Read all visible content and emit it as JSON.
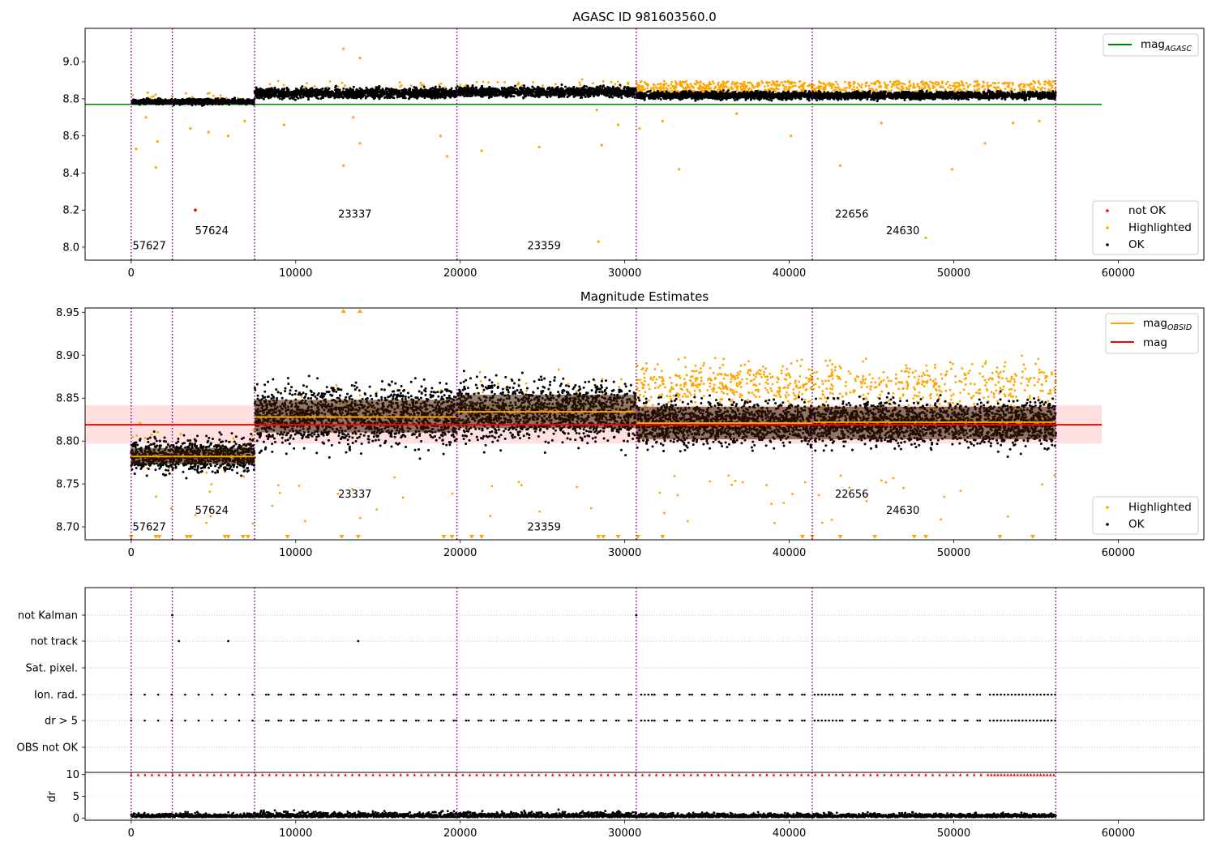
{
  "chart_data": [
    {
      "type": "scatter",
      "title": "AGASC ID 981603560.0",
      "xlim": [
        -2800,
        65200
      ],
      "ylim": [
        7.93,
        9.18
      ],
      "xticks": [
        0,
        10000,
        20000,
        30000,
        40000,
        50000,
        60000
      ],
      "yticks": [
        8.0,
        8.2,
        8.4,
        8.6,
        8.8,
        9.0
      ],
      "ytick_labels": [
        "8.0",
        "8.2",
        "8.4",
        "8.6",
        "8.8",
        "9.0"
      ],
      "obs_boundaries": [
        0,
        2500,
        7500,
        19800,
        30700,
        41400,
        56200
      ],
      "obsid_labels": [
        {
          "text": "57627",
          "x": 1100,
          "y": 7.99
        },
        {
          "text": "57624",
          "x": 4900,
          "y": 8.07
        },
        {
          "text": "23337",
          "x": 13600,
          "y": 8.16
        },
        {
          "text": "23359",
          "x": 25100,
          "y": 7.99
        },
        {
          "text": "22656",
          "x": 43800,
          "y": 8.16
        },
        {
          "text": "24630",
          "x": 46900,
          "y": 8.07
        }
      ],
      "segments": [
        {
          "x0": 0,
          "x1": 2500,
          "ok_center": 8.785,
          "ok_spread": 0.012,
          "highlight_center": 8.8,
          "highlight_count": 12
        },
        {
          "x0": 2500,
          "x1": 7500,
          "ok_center": 8.785,
          "ok_spread": 0.012,
          "highlight_center": 8.8,
          "highlight_count": 14
        },
        {
          "x0": 7500,
          "x1": 19800,
          "ok_center": 8.83,
          "ok_spread": 0.022,
          "highlight_center": 8.86,
          "highlight_count": 30
        },
        {
          "x0": 19800,
          "x1": 30700,
          "ok_center": 8.838,
          "ok_spread": 0.022,
          "highlight_center": 8.87,
          "highlight_count": 40
        },
        {
          "x0": 30700,
          "x1": 41400,
          "ok_center": 8.818,
          "ok_spread": 0.016,
          "highlight_center": 8.86,
          "highlight_count": 380
        },
        {
          "x0": 41400,
          "x1": 56200,
          "ok_center": 8.818,
          "ok_spread": 0.016,
          "highlight_center": 8.86,
          "highlight_count": 380
        }
      ],
      "outliers_highlighted": [
        {
          "x": 12900,
          "y": 9.07
        },
        {
          "x": 13900,
          "y": 9.02
        },
        {
          "x": 12900,
          "y": 8.44
        },
        {
          "x": 13500,
          "y": 8.7
        },
        {
          "x": 13900,
          "y": 8.56
        },
        {
          "x": 1500,
          "y": 8.43
        },
        {
          "x": 1600,
          "y": 8.57
        },
        {
          "x": 900,
          "y": 8.7
        },
        {
          "x": 300,
          "y": 8.53
        },
        {
          "x": 5900,
          "y": 8.6
        },
        {
          "x": 4700,
          "y": 8.62
        },
        {
          "x": 19200,
          "y": 8.49
        },
        {
          "x": 18800,
          "y": 8.6
        },
        {
          "x": 21300,
          "y": 8.52
        },
        {
          "x": 24800,
          "y": 8.54
        },
        {
          "x": 28400,
          "y": 8.03
        },
        {
          "x": 28600,
          "y": 8.55
        },
        {
          "x": 29600,
          "y": 8.66
        },
        {
          "x": 28300,
          "y": 8.74
        },
        {
          "x": 33300,
          "y": 8.42
        },
        {
          "x": 40100,
          "y": 8.6
        },
        {
          "x": 43100,
          "y": 8.44
        },
        {
          "x": 45600,
          "y": 8.67
        },
        {
          "x": 48300,
          "y": 8.05
        },
        {
          "x": 49900,
          "y": 8.42
        },
        {
          "x": 51900,
          "y": 8.56
        },
        {
          "x": 53600,
          "y": 8.67
        },
        {
          "x": 55200,
          "y": 8.68
        },
        {
          "x": 30900,
          "y": 8.64
        },
        {
          "x": 32300,
          "y": 8.68
        },
        {
          "x": 36800,
          "y": 8.72
        },
        {
          "x": 9300,
          "y": 8.66
        },
        {
          "x": 3600,
          "y": 8.64
        },
        {
          "x": 6900,
          "y": 8.68
        }
      ],
      "outliers_not_ok": [
        {
          "x": 3900,
          "y": 8.2
        }
      ],
      "mag_agasc": 8.77,
      "mag_agasc_xrange": [
        -2800,
        59000
      ],
      "legend_top": {
        "placement": "upper right",
        "entries": [
          {
            "label": "mag",
            "subscript": "AGASC",
            "color": "#008000"
          }
        ]
      },
      "legend_bottom": {
        "placement": "lower right",
        "entries": [
          {
            "label": "not OK",
            "color": "#ff0000"
          },
          {
            "label": "Highlighted",
            "color": "#ffa500"
          },
          {
            "label": "OK",
            "color": "#000000"
          }
        ]
      },
      "colors": {
        "ok": "#000000",
        "highlighted": "#ffa500",
        "not_ok": "#ff0000",
        "mag_agasc": "#008000",
        "obs_line": "#800080"
      }
    },
    {
      "type": "scatter",
      "title": "Magnitude Estimates",
      "xlim": [
        -2800,
        65200
      ],
      "ylim": [
        8.685,
        8.955
      ],
      "xticks": [
        0,
        10000,
        20000,
        30000,
        40000,
        50000,
        60000
      ],
      "yticks": [
        8.7,
        8.75,
        8.8,
        8.85,
        8.9,
        8.95
      ],
      "ytick_labels": [
        "8.70",
        "8.75",
        "8.80",
        "8.85",
        "8.90",
        "8.95"
      ],
      "obs_boundaries": [
        0,
        2500,
        7500,
        19800,
        30700,
        41400,
        56200
      ],
      "obsid_labels": [
        {
          "text": "57627",
          "x": 1100,
          "y": 8.696
        },
        {
          "text": "57624",
          "x": 4900,
          "y": 8.715
        },
        {
          "text": "23337",
          "x": 13600,
          "y": 8.734
        },
        {
          "text": "23359",
          "x": 25100,
          "y": 8.696
        },
        {
          "text": "22656",
          "x": 43800,
          "y": 8.734
        },
        {
          "text": "24630",
          "x": 46900,
          "y": 8.715
        }
      ],
      "segments": [
        {
          "x0": 0,
          "x1": 2500,
          "ok_center": 8.783,
          "ok_spread": 0.009,
          "mag_obsid": 8.782,
          "band": [
            8.773,
            8.792
          ],
          "highlight_center": 8.79,
          "highlight_count": 20
        },
        {
          "x0": 2500,
          "x1": 7500,
          "ok_center": 8.783,
          "ok_spread": 0.009,
          "mag_obsid": 8.782,
          "band": [
            8.773,
            8.792
          ],
          "highlight_center": 8.79,
          "highlight_count": 25
        },
        {
          "x0": 7500,
          "x1": 19800,
          "ok_center": 8.829,
          "ok_spread": 0.016,
          "mag_obsid": 8.828,
          "band": [
            8.81,
            8.848
          ],
          "highlight_center": 8.84,
          "highlight_count": 40
        },
        {
          "x0": 19800,
          "x1": 30700,
          "ok_center": 8.834,
          "ok_spread": 0.016,
          "mag_obsid": 8.834,
          "band": [
            8.815,
            8.854
          ],
          "highlight_center": 8.85,
          "highlight_count": 45
        },
        {
          "x0": 30700,
          "x1": 41400,
          "ok_center": 8.821,
          "ok_spread": 0.012,
          "mag_obsid": 8.821,
          "band": [
            8.802,
            8.84
          ],
          "highlight_center": 8.865,
          "highlight_count": 380
        },
        {
          "x0": 41400,
          "x1": 56200,
          "ok_center": 8.821,
          "ok_spread": 0.012,
          "mag_obsid": 8.822,
          "band": [
            8.802,
            8.84
          ],
          "highlight_center": 8.865,
          "highlight_count": 380
        }
      ],
      "mag": 8.819,
      "mag_band": [
        8.797,
        8.842
      ],
      "mag_xrange": [
        -2800,
        59000
      ],
      "legend_top": {
        "placement": "upper right",
        "entries": [
          {
            "label": "mag",
            "subscript": "OBSID",
            "color": "#ffa500"
          },
          {
            "label": "mag",
            "subscript": "",
            "color": "#ff0000"
          }
        ]
      },
      "legend_bottom": {
        "placement": "lower right",
        "entries": [
          {
            "label": "Highlighted",
            "color": "#ffa500"
          },
          {
            "label": "OK",
            "color": "#000000"
          }
        ]
      },
      "colors": {
        "ok": "#000000",
        "highlighted": "#ffa500",
        "mag_obsid": "#ffa500",
        "mag": "#ff0000",
        "mag_band": "#ffdddd",
        "obsid_band": "#3a1a00",
        "obs_line": "#800080"
      }
    },
    {
      "type": "scatter",
      "title": "",
      "xlim": [
        -2800,
        65200
      ],
      "xticks": [
        0,
        10000,
        20000,
        30000,
        40000,
        50000,
        60000
      ],
      "flag_rows": [
        "not Kalman",
        "not track",
        "Sat. pixel.",
        "Ion. rad.",
        "dr > 5",
        "OBS not OK"
      ],
      "flag_points": {
        "not Kalman": [
          2500,
          30700
        ],
        "not track": [
          2900,
          5900,
          13800
        ],
        "Sat. pixel.": [],
        "Ion. rad.": "periodic",
        "dr > 5": "periodic",
        "OBS not OK": []
      },
      "obs_boundaries": [
        0,
        2500,
        7500,
        19800,
        30700,
        41400,
        56200
      ],
      "colors": {
        "points": "#000000",
        "grid": "#b0b0b0",
        "obs_line": "#800080"
      }
    },
    {
      "type": "scatter",
      "title": "",
      "ylabel": "dr",
      "xlim": [
        -2800,
        65200
      ],
      "ylim": [
        -0.5,
        10.5
      ],
      "xticks": [
        0,
        10000,
        20000,
        30000,
        40000,
        50000,
        60000
      ],
      "yticks": [
        0,
        5,
        10
      ],
      "ytick_labels": [
        "0",
        "5",
        "10"
      ],
      "obs_boundaries": [
        0,
        2500,
        7500,
        19800,
        30700,
        41400,
        56200
      ],
      "clipped_value": 10,
      "colors": {
        "ok": "#000000",
        "clipped": "#ff0000",
        "obs_line": "#800080"
      }
    }
  ]
}
